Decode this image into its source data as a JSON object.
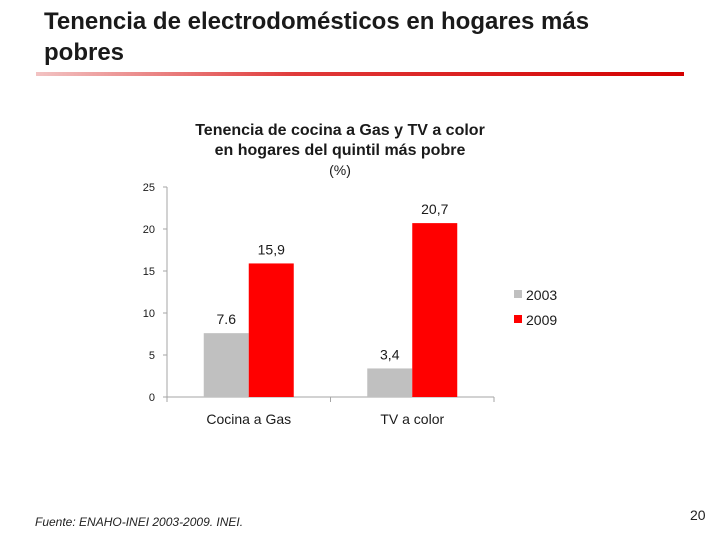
{
  "slide": {
    "title_line1": "Tenencia de electrodomésticos en hogares más",
    "title_line2": "pobres",
    "source": "Fuente: ENAHO-INEI 2003-2009. INEI.",
    "page_number": "20"
  },
  "chart_data": {
    "type": "bar",
    "title_line1": "Tenencia de cocina a Gas y TV a color",
    "title_line2": "en hogares del quintil más pobre",
    "unit": "(%)",
    "categories": [
      "Cocina a Gas",
      "TV a color"
    ],
    "series": [
      {
        "name": "2003",
        "values": [
          7.6,
          3.4
        ],
        "labels": [
          "7.6",
          "3,4"
        ],
        "color": "#c0c0c0"
      },
      {
        "name": "2009",
        "values": [
          15.9,
          20.7
        ],
        "labels": [
          "15,9",
          "20,7"
        ],
        "color": "#ff0000"
      }
    ],
    "ylim": [
      0,
      25
    ],
    "yticks": [
      0,
      5,
      10,
      15,
      20,
      25
    ],
    "grid": false,
    "legend": "right"
  }
}
